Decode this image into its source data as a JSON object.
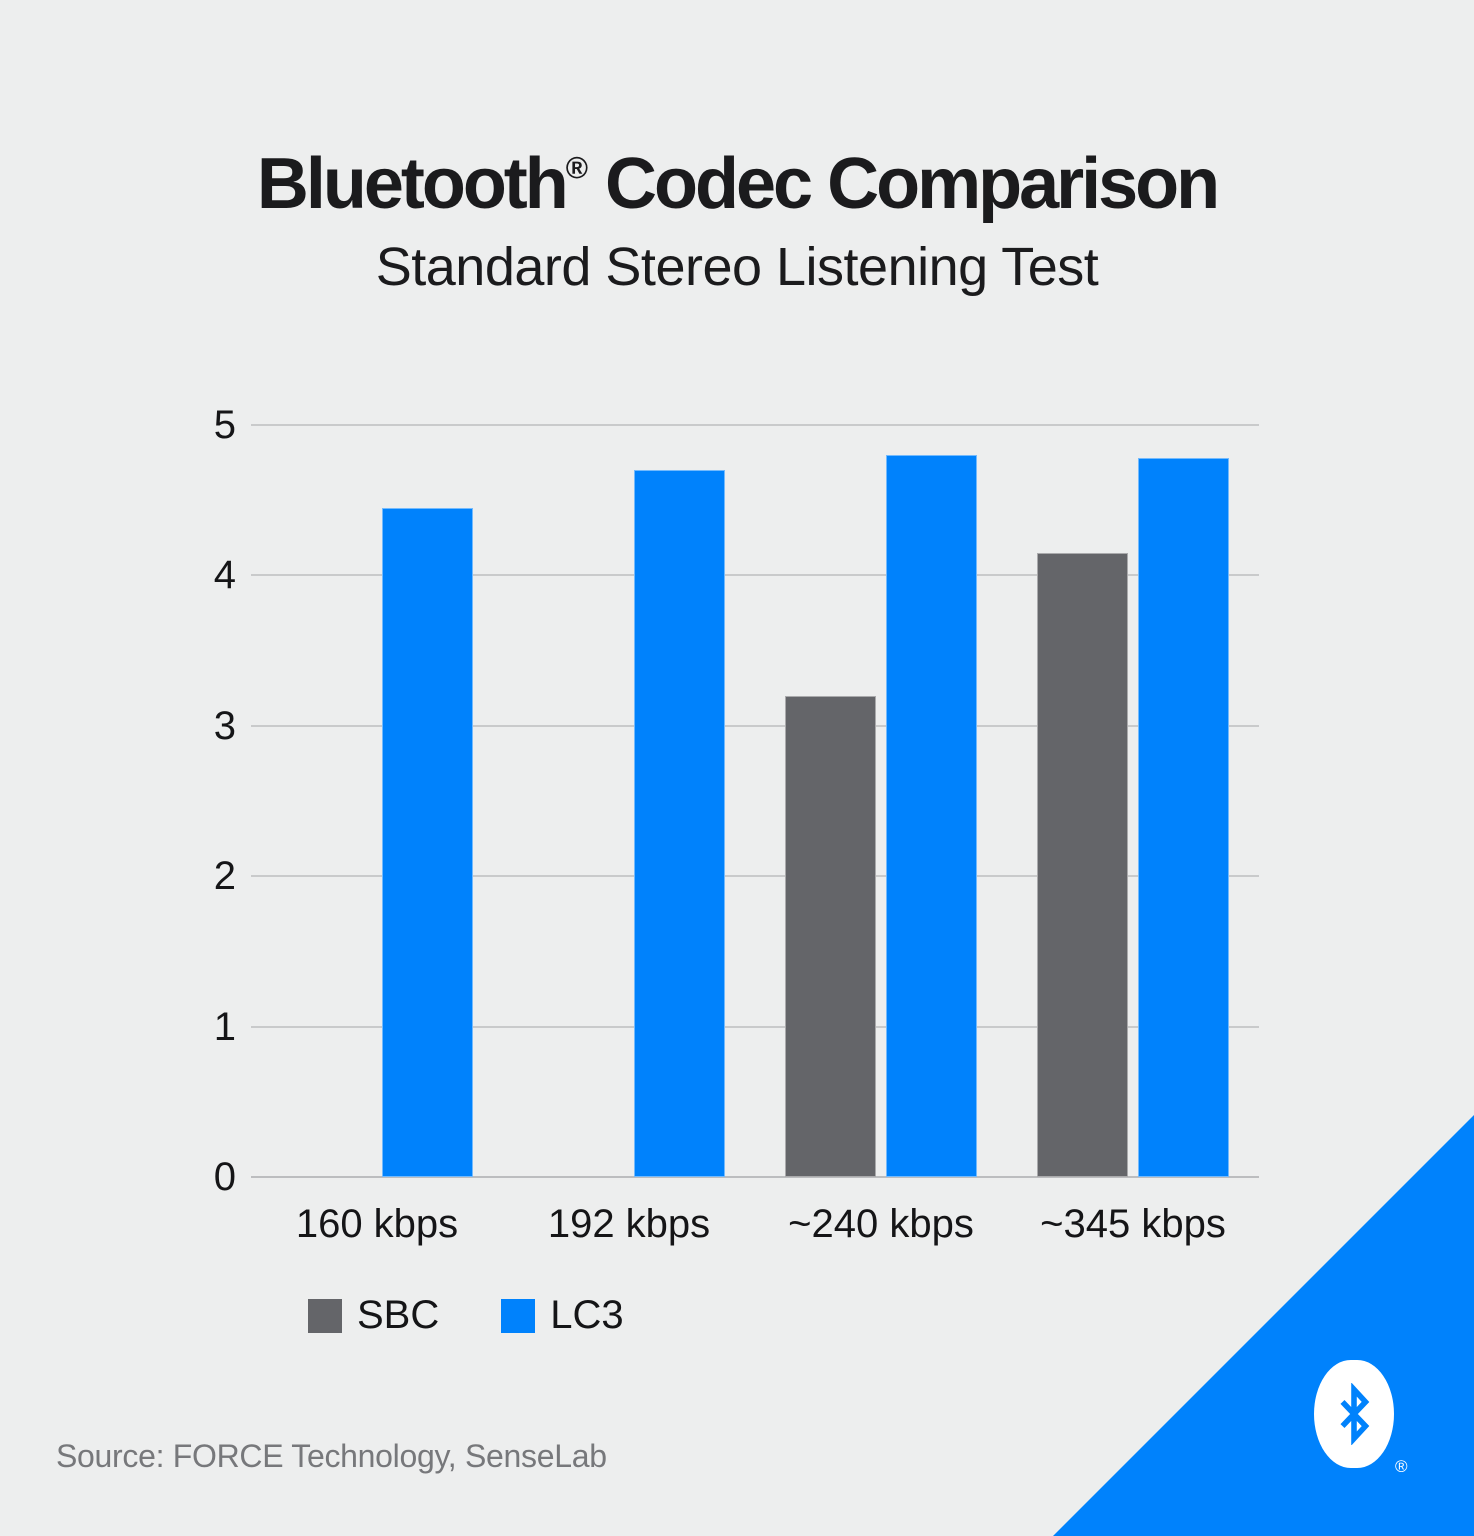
{
  "header": {
    "title_brand": "Bluetooth",
    "title_reg": "®",
    "title_rest": " Codec Comparison",
    "subtitle": "Standard Stereo Listening Test"
  },
  "chart_data": {
    "type": "bar",
    "title": "Bluetooth® Codec Comparison",
    "subtitle": "Standard Stereo Listening Test",
    "categories": [
      "160 kbps",
      "192 kbps",
      "~240 kbps",
      "~345 kbps"
    ],
    "series": [
      {
        "name": "SBC",
        "color": "#646569",
        "values": [
          null,
          null,
          3.2,
          4.15
        ]
      },
      {
        "name": "LC3",
        "color": "#0082fc",
        "values": [
          4.45,
          4.7,
          4.8,
          4.78
        ]
      }
    ],
    "xlabel": "",
    "ylabel": "",
    "ylim": [
      0,
      5
    ],
    "yticks": [
      0,
      1,
      2,
      3,
      4,
      5
    ],
    "grid": true,
    "legend_position": "bottom-left"
  },
  "legend": {
    "items": [
      {
        "label": "SBC",
        "color": "#646569"
      },
      {
        "label": "LC3",
        "color": "#0082fc"
      }
    ]
  },
  "source": {
    "text": "Source: FORCE Technology, SenseLab"
  },
  "branding": {
    "registered_mark": "®",
    "logo": "bluetooth-icon"
  },
  "colors": {
    "background": "#edeeee",
    "accent_blue": "#0082fc",
    "bar_gray": "#646569",
    "grid": "#c9cacb",
    "axis": "#bcbdbf",
    "text_dark": "#1b1b1d",
    "text_gray": "#77787b"
  }
}
